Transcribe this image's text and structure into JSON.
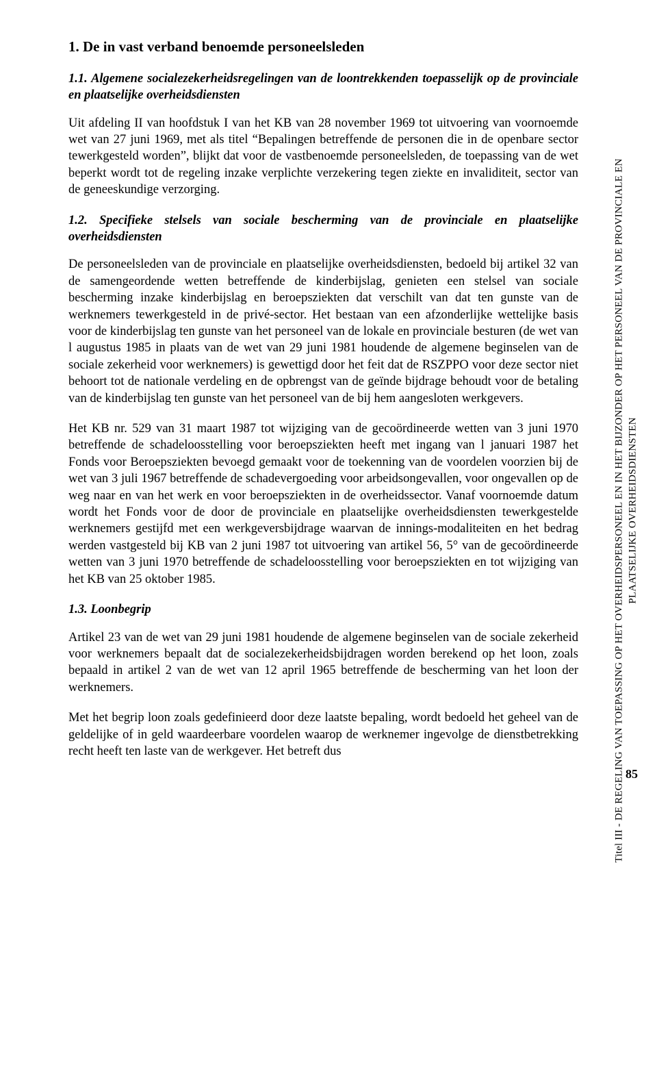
{
  "sidebar": {
    "line1": "Titel III - DE REGELING VAN TOEPASSING OP HET OVERHEIDSPERSONEEL EN IN HET BIJZONDER OP HET PERSONEEL VAN DE PROVINCIALE EN",
    "line2": "PLAATSELIJKE OVERHEIDSDIENSTEN"
  },
  "heading1": "1. De in vast verband benoemde personeelsleden",
  "heading2": "1.1. Algemene socialezekerheidsregelingen van de loontrekkenden toepasselijk op de provinciale en plaatselijke overheidsdiensten",
  "para1": "Uit afdeling II van hoofdstuk I van het KB van 28 november 1969 tot uitvoering van voornoemde wet van 27 juni 1969, met als titel “Bepalingen betreffende de personen die in de openbare sector tewerkgesteld worden”, blijkt dat voor de vastbenoemde personeelsleden, de toepassing van de wet beperkt wordt tot de regeling inzake verplichte verzekering tegen ziekte en invaliditeit, sector van de geneeskundige verzorging.",
  "heading3": "1.2. Specifieke stelsels van sociale bescherming van de provinciale en plaatselijke overheidsdiensten",
  "para2": "De personeelsleden van de provinciale en plaatselijke overheidsdiensten, bedoeld bij artikel 32 van de samengeordende wetten betreffende de kinderbijslag, genieten een stelsel van sociale bescherming inzake kinderbijslag en beroepsziekten dat verschilt van dat ten gunste van de werknemers tewerkgesteld in de privé-sector. Het bestaan van een afzonderlijke wettelijke basis voor de kinderbijslag ten gunste van het personeel van de lokale en provinciale besturen (de wet van l augustus 1985 in plaats van de wet van 29 juni 1981 houdende de algemene beginselen van de sociale zekerheid voor werknemers) is gewettigd door het feit dat de RSZPPO voor deze sector niet behoort tot de nationale verdeling en de opbrengst van de geïnde bijdrage behoudt voor de betaling van de kinderbijslag ten gunste van het personeel van de bij hem aangesloten werkgevers.",
  "para3": "Het KB nr. 529 van 31 maart 1987 tot wijziging van de gecoördineerde wetten van 3 juni 1970 betreffende de schadeloosstelling voor beroepsziekten heeft met ingang van l januari 1987 het Fonds voor Beroepsziekten bevoegd gemaakt voor de toekenning van de voordelen voorzien bij de wet van 3 juli 1967 betreffende de schadevergoeding voor arbeidsongevallen, voor ongevallen op de weg naar en van het werk en voor beroepsziekten in de overheidssector. Vanaf voornoemde datum wordt het Fonds voor de door de provinciale en plaatselijke overheidsdiensten tewerkgestelde werknemers gestijfd met een werkgeversbijdrage waarvan de innings-modaliteiten en het bedrag werden vastgesteld bij KB van 2 juni 1987 tot uitvoering van artikel 56, 5° van de gecoördineerde wetten van 3 juni 1970 betreffende de schadeloosstelling voor beroepsziekten en tot wijziging van het KB van 25 oktober 1985.",
  "heading4": "1.3. Loonbegrip",
  "para4": "Artikel 23 van de wet van 29 juni 1981 houdende de algemene beginselen van de sociale zekerheid voor werknemers bepaalt dat de socialezekerheidsbijdragen worden berekend op het loon, zoals bepaald in artikel 2 van de wet van 12 april 1965 betreffende de bescherming van het loon der werknemers.",
  "para5": "Met het begrip loon zoals gedefinieerd door deze laatste bepaling, wordt bedoeld het geheel van de geldelijke of in geld waardeerbare voordelen waarop de werknemer ingevolge de dienstbetrekking recht heeft ten laste van de werkgever. Het betreft dus",
  "pageNumber": "85"
}
